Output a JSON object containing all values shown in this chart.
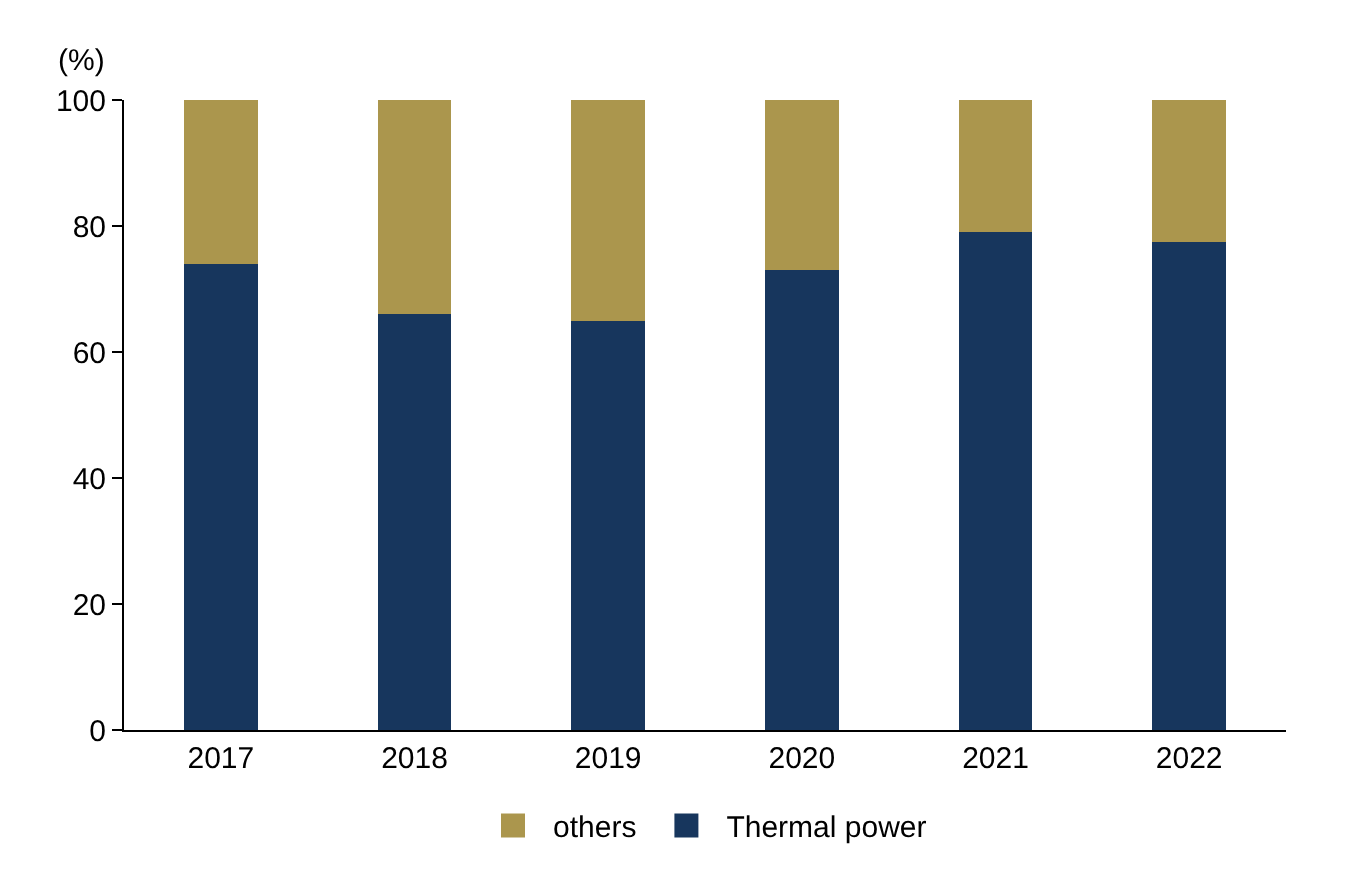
{
  "chart_data": {
    "type": "bar",
    "stacked": true,
    "ylabel": "(%)",
    "categories": [
      "2017",
      "2018",
      "2019",
      "2020",
      "2021",
      "2022"
    ],
    "series": [
      {
        "name": "Thermal power",
        "color": "#17365d",
        "values": [
          74,
          66,
          65,
          73,
          79,
          77.5
        ]
      },
      {
        "name": "others",
        "color": "#ab964d",
        "values": [
          26,
          34,
          35,
          27,
          21,
          22.5
        ]
      }
    ],
    "ylim": [
      0,
      100
    ],
    "yticks": [
      0,
      20,
      40,
      60,
      80,
      100
    ],
    "grid": false,
    "legend": "bottom"
  }
}
